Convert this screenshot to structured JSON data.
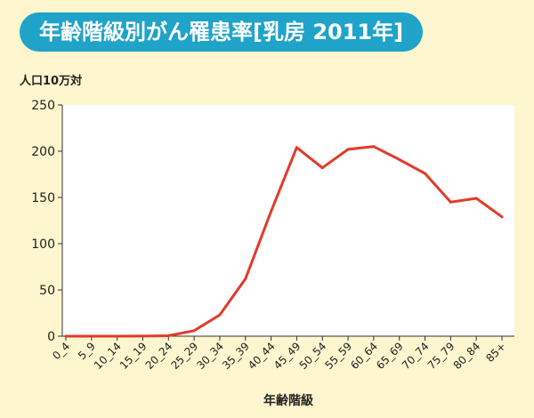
{
  "title": "年齢階級別がん罹患率[乳房 2011年]",
  "chart_data": {
    "type": "line",
    "title": "年齢階級別がん罹患率[乳房 2011年]",
    "ylabel": "人口10万対",
    "xlabel": "年齢階級",
    "ylim": [
      0,
      250
    ],
    "yticks": [
      0,
      50,
      100,
      150,
      200,
      250
    ],
    "categories": [
      "0_4",
      "5_9",
      "10_14",
      "15_19",
      "20_24",
      "25_29",
      "30_34",
      "35_39",
      "40_44",
      "45_49",
      "50_54",
      "55_59",
      "60_64",
      "65_69",
      "70_74",
      "75_79",
      "80_84",
      "85+"
    ],
    "values": [
      0,
      0,
      0,
      0.1,
      0.5,
      6,
      23,
      62,
      135,
      204,
      182,
      202,
      205,
      191,
      176,
      145,
      149,
      129
    ],
    "grid": false,
    "series_color": "#E23A2B"
  }
}
